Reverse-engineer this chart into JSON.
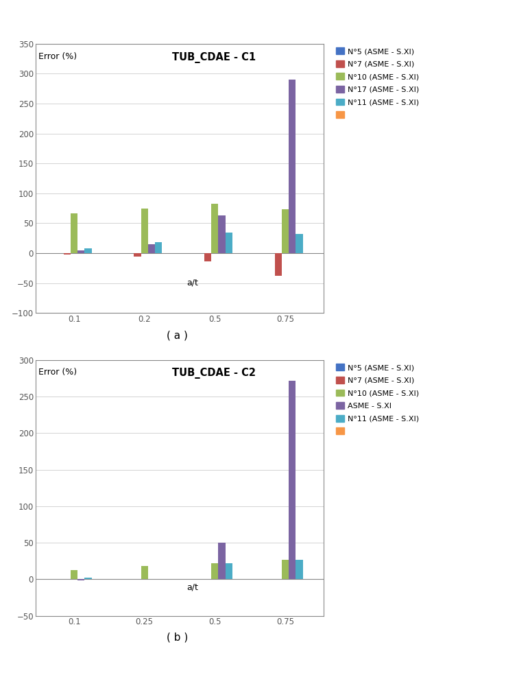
{
  "chart_a": {
    "title": "TUB_CDAE - C1",
    "ylabel_text": "Error (%)",
    "xlabel_text": "a/t",
    "ylim": [
      -100,
      350
    ],
    "yticks": [
      -100,
      -50,
      0,
      50,
      100,
      150,
      200,
      250,
      300,
      350
    ],
    "categories": [
      "0.1",
      "0.2",
      "0.5",
      "0.75"
    ],
    "series": [
      {
        "label": "N°5 (ASME - S.XI)",
        "color": "#4472C4",
        "values": [
          0,
          0,
          0,
          0
        ]
      },
      {
        "label": "N°7 (ASME - S.XI)",
        "color": "#C0504D",
        "values": [
          -2,
          -6,
          -14,
          -38
        ]
      },
      {
        "label": "N°10 (ASME - S.XI)",
        "color": "#9BBB59",
        "values": [
          67,
          74,
          82,
          73
        ]
      },
      {
        "label": "N°17 (ASME - S.XI)",
        "color": "#7B64A2",
        "values": [
          5,
          15,
          63,
          290
        ]
      },
      {
        "label": "N°11 (ASME - S.XI)",
        "color": "#4BACC6",
        "values": [
          8,
          18,
          34,
          32
        ]
      },
      {
        "label": "",
        "color": "#F79646",
        "values": [
          null,
          null,
          null,
          null
        ]
      }
    ]
  },
  "chart_b": {
    "title": "TUB_CDAE - C2",
    "ylabel_text": "Error (%)",
    "xlabel_text": "a/t",
    "ylim": [
      -50,
      300
    ],
    "yticks": [
      -50,
      0,
      50,
      100,
      150,
      200,
      250,
      300
    ],
    "categories": [
      "0.1",
      "0.25",
      "0.5",
      "0.75"
    ],
    "series": [
      {
        "label": "N°5 (ASME - S.XI)",
        "color": "#4472C4",
        "values": [
          0,
          0,
          0,
          0
        ]
      },
      {
        "label": "N°7 (ASME - S.XI)",
        "color": "#C0504D",
        "values": [
          0,
          0,
          0,
          0
        ]
      },
      {
        "label": "N°10 (ASME - S.XI)",
        "color": "#9BBB59",
        "values": [
          13,
          18,
          22,
          27
        ]
      },
      {
        "label": "ASME - S.XI",
        "color": "#7B64A2",
        "values": [
          -2,
          0,
          50,
          272
        ]
      },
      {
        "label": "N°11 (ASME - S.XI)",
        "color": "#4BACC6",
        "values": [
          2,
          0,
          22,
          27
        ]
      },
      {
        "label": "",
        "color": "#F79646",
        "values": [
          null,
          null,
          null,
          null
        ]
      }
    ]
  },
  "bg": "#FFFFFF",
  "caption_a": "( a )",
  "caption_b": "( b )"
}
